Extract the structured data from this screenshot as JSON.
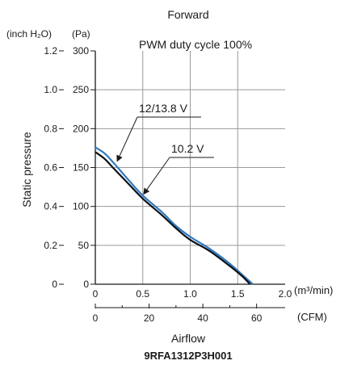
{
  "chart_data": {
    "type": "line",
    "title": "Forward",
    "subtitle": "PWM duty cycle 100%",
    "model": "9RFA1312P3H001",
    "ylabel": "Static pressure",
    "y_inch_unit": "(inch H₂O)",
    "y_pa_unit": "(Pa)",
    "xlabel": "Airflow",
    "x_m3_unit": "(m³/min)",
    "x_cfm_unit": "(CFM)",
    "xlim": [
      0,
      2.0
    ],
    "ylim": [
      0,
      300
    ],
    "x_ticks": [
      "0",
      "0.5",
      "1.0",
      "1.5",
      "2.0"
    ],
    "x_cfm_ticks": [
      "0",
      "20",
      "40",
      "60"
    ],
    "y_pa_ticks": [
      "0",
      "50",
      "100",
      "150",
      "200",
      "250",
      "300"
    ],
    "y_inch_ticks": [
      "0",
      "0.2",
      "0.4",
      "0.6",
      "0.8",
      "1.0",
      "1.2"
    ],
    "grid": true,
    "series": [
      {
        "name": "12/13.8 V",
        "color": "#2b7bc4",
        "x": [
          0,
          0.1,
          0.2,
          0.35,
          0.5,
          0.7,
          0.85,
          1.0,
          1.2,
          1.4,
          1.55,
          1.66
        ],
        "y": [
          176,
          168,
          155,
          134,
          114,
          93,
          75,
          61,
          46,
          28,
          12,
          0
        ]
      },
      {
        "name": "10.2 V",
        "color": "#111111",
        "x": [
          0,
          0.1,
          0.2,
          0.35,
          0.5,
          0.7,
          0.85,
          1.0,
          1.2,
          1.4,
          1.55,
          1.63
        ],
        "y": [
          170,
          161,
          148,
          129,
          110,
          89,
          72,
          57,
          43,
          25,
          10,
          0
        ]
      }
    ]
  }
}
